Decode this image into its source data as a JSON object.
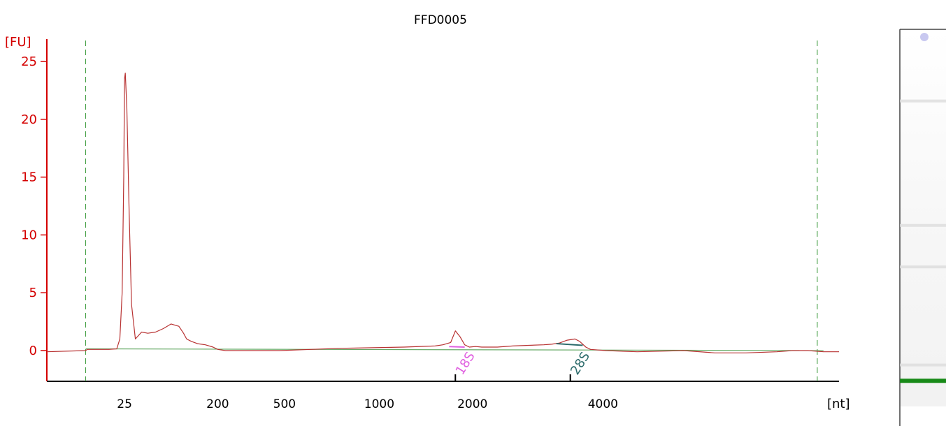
{
  "chart_data": {
    "type": "line",
    "title": "FFD0005",
    "ylabel": "[FU]",
    "xlabel": "[nt]",
    "ylim": [
      -2.6,
      27
    ],
    "y_ticks": [
      0,
      5,
      10,
      15,
      20,
      25
    ],
    "x_tick_labels": [
      "25",
      "200",
      "500",
      "1000",
      "2000",
      "4000"
    ],
    "x_range_s": [
      19,
      70
    ],
    "x_tick_positions_s": [
      24.0,
      30.0,
      34.3,
      40.4,
      46.4,
      54.8
    ],
    "lower_marker_s": 21.5,
    "upper_marker_s": 68.6,
    "grid": false,
    "series": [
      {
        "color": "#b83232",
        "x": [
          19.0,
          21.5,
          21.6,
          23.0,
          23.5,
          23.7,
          23.85,
          23.95,
          24.0,
          24.05,
          24.15,
          24.3,
          24.45,
          24.7,
          25.1,
          25.5,
          26.0,
          26.5,
          27.0,
          27.5,
          27.8,
          28.0,
          28.3,
          28.7,
          29.2,
          29.7,
          30.0,
          30.5,
          32,
          34,
          36,
          38,
          40,
          42,
          44,
          44.5,
          45.0,
          45.3,
          45.6,
          45.9,
          46.2,
          46.6,
          47,
          48,
          49,
          50,
          51,
          51.5,
          52.0,
          52.5,
          53.0,
          53.3,
          53.7,
          54,
          55,
          57,
          60,
          62,
          64,
          66,
          67,
          68,
          69,
          70
        ],
        "y": [
          -0.1,
          0.0,
          0.1,
          0.1,
          0.15,
          1.0,
          5.0,
          15.0,
          23.5,
          24.0,
          21.0,
          12.0,
          4.0,
          1.0,
          1.6,
          1.5,
          1.6,
          1.9,
          2.3,
          2.1,
          1.5,
          1.0,
          0.8,
          0.6,
          0.5,
          0.3,
          0.1,
          0.0,
          0.0,
          0.0,
          0.1,
          0.2,
          0.25,
          0.3,
          0.4,
          0.5,
          0.7,
          1.7,
          1.2,
          0.5,
          0.3,
          0.35,
          0.3,
          0.3,
          0.4,
          0.45,
          0.5,
          0.55,
          0.65,
          0.9,
          1.0,
          0.8,
          0.3,
          0.1,
          0.0,
          -0.1,
          0.0,
          -0.2,
          -0.2,
          -0.1,
          0.0,
          0.0,
          -0.1,
          -0.1
        ]
      }
    ],
    "baseline": {
      "color": "#66aa66",
      "x": [
        21.5,
        69.0
      ],
      "y": [
        0.15,
        0.0
      ]
    },
    "peaks": [
      {
        "label": "18S",
        "color": "#e060e0",
        "x_s": 45.3,
        "fit_x": [
          44.9,
          45.9
        ],
        "fit_y": [
          0.35,
          0.3
        ]
      },
      {
        "label": "28S",
        "color": "#2a6a6a",
        "x_s": 52.7,
        "fit_x": [
          51.8,
          53.5
        ],
        "fit_y": [
          0.6,
          0.45
        ]
      }
    ]
  },
  "gel": {
    "bands_fraction": [
      0.19,
      0.52,
      0.63,
      0.89
    ],
    "marker_band_fraction": 0.932,
    "marker_color": "#188a18"
  }
}
